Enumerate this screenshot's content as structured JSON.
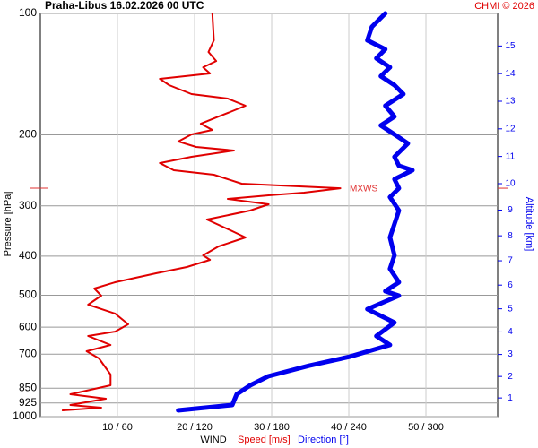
{
  "chart_data": {
    "type": "line",
    "title": "Praha-Libus   16.02.2026 00 UTC",
    "credit": "CHMI © 2026",
    "ylabel": "Pressure [hPa]",
    "y2label": "Altitude [km]",
    "xlabel": "WIND",
    "log_y": true,
    "grid": true,
    "ylim": [
      1000,
      100
    ],
    "yticks": [
      100,
      200,
      300,
      400,
      500,
      600,
      700,
      850,
      925,
      1000
    ],
    "y2ticks": [
      1,
      2,
      3,
      4,
      5,
      6,
      7,
      8,
      9,
      10,
      11,
      12,
      13,
      14,
      15
    ],
    "xlim": [
      0,
      59.3
    ],
    "x2lim": [
      0,
      355.8
    ],
    "xticks": [
      {
        "value": 10,
        "label": "10 / 60"
      },
      {
        "value": 20,
        "label": "20 / 120"
      },
      {
        "value": 30,
        "label": "30 / 180"
      },
      {
        "value": 40,
        "label": "40 / 240"
      },
      {
        "value": 50,
        "label": "50 / 300"
      }
    ],
    "annotation": {
      "text": "MXWS",
      "pressure": 271.3,
      "color": "#e03030"
    },
    "series": [
      {
        "name": "Speed [m/s]",
        "color": "#e00000",
        "axis": "x",
        "x": [
          22.3,
          22.5,
          21.8,
          22.8,
          21.1,
          22.0,
          15.5,
          16.7,
          19.6,
          24.3,
          26.6,
          24.6,
          23.1,
          20.8,
          22.3,
          19.6,
          17.9,
          20.2,
          25.1,
          19.6,
          15.5,
          17.3,
          22.5,
          26.1,
          38.9,
          34.2,
          29.6,
          24.3,
          29.6,
          27.2,
          21.6,
          24.9,
          26.6,
          23.1,
          21.1,
          22.0,
          19.0,
          15.0,
          9.7,
          7.0,
          7.9,
          6.2,
          9.7,
          11.4,
          9.7,
          6.2,
          9.1,
          6.0,
          7.6,
          9.1,
          9.1,
          3.9,
          8.5,
          3.9,
          7.9,
          2.9
        ],
        "y": [
          100,
          116.6,
          124.6,
          131.2,
          136.0,
          140.9,
          145.3,
          150.6,
          158.5,
          162.6,
          169.4,
          175.6,
          180.2,
          187.7,
          194.5,
          199.5,
          207.8,
          214.3,
          218.8,
          226.8,
          235.0,
          244.8,
          251.2,
          264.4,
          271.3,
          278.3,
          282.6,
          288.4,
          297.4,
          308.3,
          324.5,
          346.7,
          359.4,
          378.2,
          398.1,
          408.4,
          425.5,
          441.1,
          464.2,
          481.2,
          501.2,
          527.6,
          555.1,
          590.2,
          615.2,
          631,
          664.2,
          688.4,
          717.1,
          786.3,
          835.9,
          879.9,
          902.7,
          935.6,
          949.9,
          964.8
        ]
      },
      {
        "name": "Direction [°]",
        "color": "#0000ee",
        "axis": "x2",
        "x": [
          268.4,
          264.9,
          257.9,
          254.4,
          268.4,
          261.4,
          272,
          264.9,
          275.5,
          282.5,
          268.4,
          275.5,
          264.9,
          275.5,
          286,
          275.5,
          279,
          289.5,
          275.5,
          279,
          272,
          279,
          275.5,
          272,
          275.5,
          272,
          279,
          268.4,
          279,
          254.4,
          275.5,
          261.4,
          272,
          240.4,
          208.9,
          177.3,
          163.3,
          152.8,
          149.3,
          107.2
        ],
        "y": [
          100,
          102.6,
          108,
          116.6,
          122.7,
          129.2,
          136,
          143.1,
          150.6,
          158.5,
          169.4,
          180.2,
          189.6,
          199.5,
          210.1,
          226.8,
          238.7,
          244.8,
          257.7,
          271.3,
          285.5,
          308.3,
          332.8,
          359.4,
          398.1,
          429.9,
          464.2,
          488.6,
          501.2,
          541.2,
          584.3,
          631,
          664.2,
          710.6,
          747.9,
          794.3,
          835.9,
          879.9,
          935.6,
          964.8
        ]
      }
    ]
  }
}
